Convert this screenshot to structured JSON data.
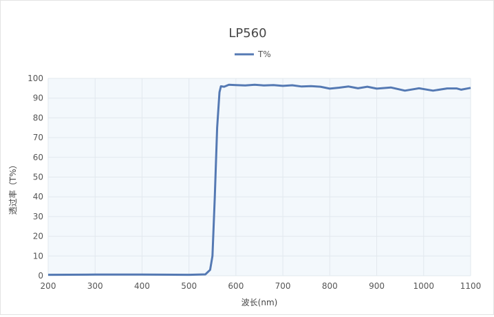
{
  "chart_data": {
    "type": "line",
    "title": "LP560",
    "xlabel": "波长(nm)",
    "ylabel": "透过率（T%）",
    "xlim": [
      200,
      1100
    ],
    "ylim": [
      0,
      100
    ],
    "xticks": [
      200,
      300,
      400,
      500,
      600,
      700,
      800,
      900,
      1000,
      1100
    ],
    "yticks": [
      0,
      10,
      20,
      30,
      40,
      50,
      60,
      70,
      80,
      90,
      100
    ],
    "grid": true,
    "legend_placement": "top-center",
    "colors": {
      "series": "#5479b3",
      "plot_bg": "#f3f8fc",
      "grid": "#e2e8ee"
    },
    "series": [
      {
        "name": "T%",
        "x": [
          200,
          300,
          400,
          500,
          535,
          545,
          550,
          555,
          560,
          565,
          568,
          575,
          585,
          600,
          620,
          640,
          660,
          680,
          700,
          720,
          740,
          760,
          780,
          800,
          820,
          840,
          860,
          880,
          900,
          930,
          960,
          990,
          1020,
          1050,
          1070,
          1080,
          1100
        ],
        "y": [
          0.5,
          0.6,
          0.6,
          0.5,
          0.7,
          3,
          10,
          40,
          75,
          93,
          96,
          95.8,
          96.8,
          96.6,
          96.4,
          96.8,
          96.4,
          96.6,
          96.2,
          96.5,
          95.9,
          96.1,
          95.8,
          94.8,
          95.3,
          95.9,
          95.0,
          95.8,
          94.8,
          95.4,
          93.8,
          95.0,
          93.8,
          94.9,
          94.9,
          94.3,
          95.2
        ]
      }
    ]
  }
}
